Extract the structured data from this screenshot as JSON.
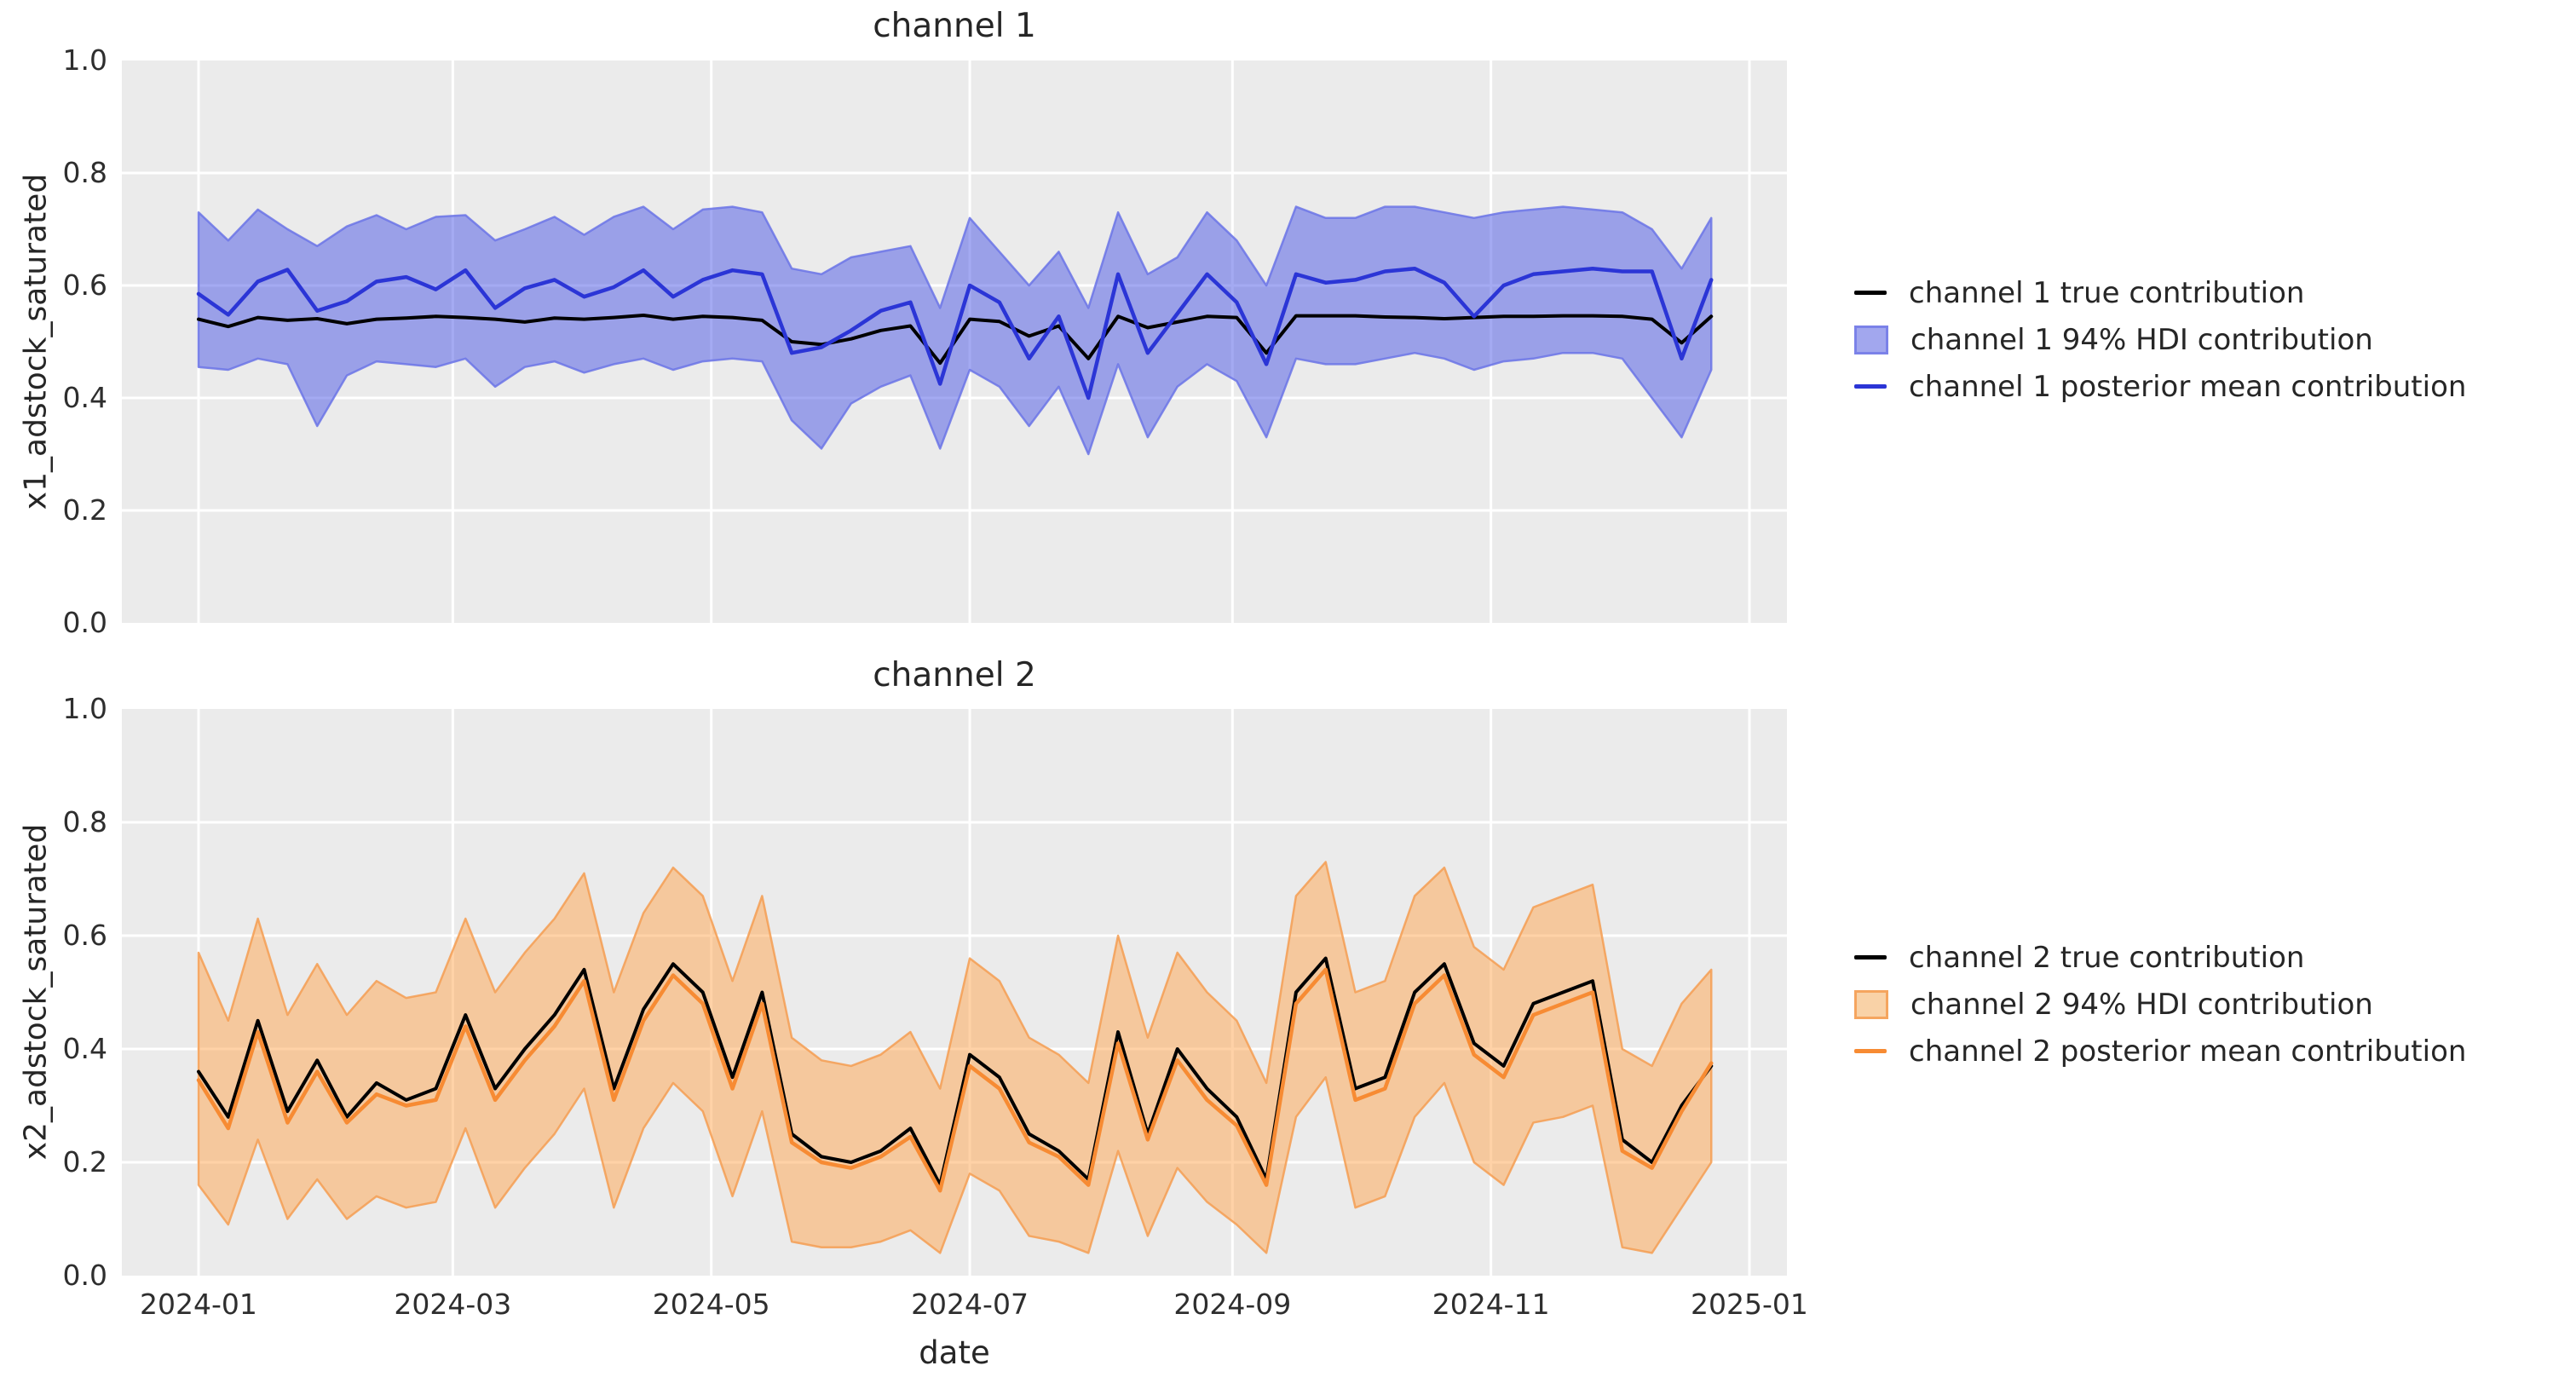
{
  "figure": {
    "background": "#ffffff",
    "axes_background": "#ebebeb",
    "grid_color": "#ffffff",
    "text_color": "#262626"
  },
  "x_axis": {
    "label": "date",
    "ticks": [
      {
        "label": "2024-01",
        "day": 0
      },
      {
        "label": "2024-03",
        "day": 60
      },
      {
        "label": "2024-05",
        "day": 121
      },
      {
        "label": "2024-07",
        "day": 182
      },
      {
        "label": "2024-09",
        "day": 244
      },
      {
        "label": "2024-11",
        "day": 305
      },
      {
        "label": "2025-01",
        "day": 366
      }
    ],
    "span_days": 366,
    "points_step_days": 7
  },
  "chart_data": [
    {
      "type": "line",
      "title": "channel 1",
      "ylabel": "x1_adstock_saturated",
      "ylim": [
        0.0,
        1.0
      ],
      "y_ticks": [
        "0.0",
        "0.2",
        "0.4",
        "0.6",
        "0.8",
        "1.0"
      ],
      "grid": true,
      "legend": [
        "channel 1 true contribution",
        "channel 1 94% HDI contribution",
        "channel 1 posterior mean contribution"
      ],
      "colors": {
        "true_line": "#000000",
        "mean_line": "#2b35d6",
        "band_fill": "#4955e5",
        "band_fill_opacity": 0.5,
        "band_edge": "#6b74e6",
        "legend_band_fill": "#a2a7ee",
        "legend_band_edge": "#7b82e8"
      },
      "series": {
        "true": [
          0.54,
          0.527,
          0.543,
          0.538,
          0.541,
          0.532,
          0.54,
          0.542,
          0.545,
          0.543,
          0.54,
          0.535,
          0.542,
          0.54,
          0.543,
          0.547,
          0.54,
          0.545,
          0.543,
          0.538,
          0.5,
          0.495,
          0.505,
          0.52,
          0.528,
          0.462,
          0.54,
          0.536,
          0.51,
          0.528,
          0.47,
          0.545,
          0.525,
          0.535,
          0.545,
          0.543,
          0.48,
          0.546,
          0.546,
          0.546,
          0.544,
          0.543,
          0.541,
          0.543,
          0.545,
          0.545,
          0.546,
          0.546,
          0.545,
          0.54,
          0.498,
          0.545
        ],
        "mean": [
          0.585,
          0.548,
          0.607,
          0.628,
          0.555,
          0.572,
          0.607,
          0.615,
          0.593,
          0.627,
          0.56,
          0.595,
          0.61,
          0.58,
          0.597,
          0.627,
          0.58,
          0.61,
          0.627,
          0.62,
          0.48,
          0.49,
          0.52,
          0.555,
          0.57,
          0.425,
          0.6,
          0.57,
          0.47,
          0.545,
          0.4,
          0.62,
          0.48,
          0.55,
          0.62,
          0.57,
          0.46,
          0.62,
          0.605,
          0.61,
          0.625,
          0.63,
          0.605,
          0.545,
          0.6,
          0.62,
          0.625,
          0.63,
          0.625,
          0.625,
          0.47,
          0.61
        ],
        "hdi_low": [
          0.455,
          0.45,
          0.47,
          0.46,
          0.35,
          0.44,
          0.465,
          0.46,
          0.455,
          0.47,
          0.42,
          0.455,
          0.465,
          0.445,
          0.46,
          0.47,
          0.45,
          0.465,
          0.47,
          0.465,
          0.36,
          0.31,
          0.39,
          0.42,
          0.44,
          0.31,
          0.45,
          0.42,
          0.35,
          0.42,
          0.3,
          0.46,
          0.33,
          0.42,
          0.46,
          0.43,
          0.33,
          0.47,
          0.46,
          0.46,
          0.47,
          0.48,
          0.47,
          0.45,
          0.465,
          0.47,
          0.48,
          0.48,
          0.47,
          0.4,
          0.33,
          0.45
        ],
        "hdi_high": [
          0.73,
          0.68,
          0.735,
          0.7,
          0.67,
          0.705,
          0.725,
          0.7,
          0.722,
          0.725,
          0.68,
          0.7,
          0.722,
          0.69,
          0.722,
          0.74,
          0.7,
          0.735,
          0.74,
          0.73,
          0.63,
          0.62,
          0.65,
          0.66,
          0.67,
          0.56,
          0.72,
          0.66,
          0.6,
          0.66,
          0.56,
          0.73,
          0.62,
          0.65,
          0.73,
          0.68,
          0.6,
          0.74,
          0.72,
          0.72,
          0.74,
          0.74,
          0.73,
          0.72,
          0.73,
          0.735,
          0.74,
          0.735,
          0.73,
          0.7,
          0.63,
          0.72
        ]
      }
    },
    {
      "type": "line",
      "title": "channel 2",
      "ylabel": "x2_adstock_saturated",
      "ylim": [
        0.0,
        1.0
      ],
      "y_ticks": [
        "0.0",
        "0.2",
        "0.4",
        "0.6",
        "0.8",
        "1.0"
      ],
      "grid": true,
      "legend": [
        "channel 2 true contribution",
        "channel 2 94% HDI contribution",
        "channel 2 posterior mean contribution"
      ],
      "colors": {
        "true_line": "#000000",
        "mean_line": "#f78b33",
        "band_fill": "#ffa54f",
        "band_fill_opacity": 0.5,
        "band_edge": "#f59d52",
        "legend_band_fill": "#f9d2a7",
        "legend_band_edge": "#f5a55f"
      },
      "series": {
        "true": [
          0.36,
          0.28,
          0.45,
          0.29,
          0.38,
          0.28,
          0.34,
          0.31,
          0.33,
          0.46,
          0.33,
          0.4,
          0.46,
          0.54,
          0.33,
          0.47,
          0.55,
          0.5,
          0.35,
          0.5,
          0.25,
          0.21,
          0.2,
          0.22,
          0.26,
          0.16,
          0.39,
          0.35,
          0.25,
          0.22,
          0.17,
          0.43,
          0.25,
          0.4,
          0.33,
          0.28,
          0.17,
          0.5,
          0.56,
          0.33,
          0.35,
          0.5,
          0.55,
          0.41,
          0.37,
          0.48,
          0.5,
          0.52,
          0.24,
          0.2,
          0.3,
          0.37
        ],
        "mean": [
          0.345,
          0.26,
          0.43,
          0.27,
          0.36,
          0.27,
          0.32,
          0.3,
          0.31,
          0.44,
          0.31,
          0.38,
          0.44,
          0.52,
          0.31,
          0.45,
          0.53,
          0.48,
          0.33,
          0.48,
          0.235,
          0.2,
          0.19,
          0.21,
          0.245,
          0.15,
          0.37,
          0.33,
          0.235,
          0.21,
          0.16,
          0.41,
          0.24,
          0.38,
          0.31,
          0.265,
          0.16,
          0.48,
          0.54,
          0.31,
          0.33,
          0.48,
          0.53,
          0.39,
          0.35,
          0.46,
          0.48,
          0.5,
          0.22,
          0.19,
          0.29,
          0.375
        ],
        "hdi_low": [
          0.16,
          0.09,
          0.24,
          0.1,
          0.17,
          0.1,
          0.14,
          0.12,
          0.13,
          0.26,
          0.12,
          0.19,
          0.25,
          0.33,
          0.12,
          0.26,
          0.34,
          0.29,
          0.14,
          0.29,
          0.06,
          0.05,
          0.05,
          0.06,
          0.08,
          0.04,
          0.18,
          0.15,
          0.07,
          0.06,
          0.04,
          0.22,
          0.07,
          0.19,
          0.13,
          0.09,
          0.04,
          0.28,
          0.35,
          0.12,
          0.14,
          0.28,
          0.34,
          0.2,
          0.16,
          0.27,
          0.28,
          0.3,
          0.05,
          0.04,
          0.12,
          0.2
        ],
        "hdi_high": [
          0.57,
          0.45,
          0.63,
          0.46,
          0.55,
          0.46,
          0.52,
          0.49,
          0.5,
          0.63,
          0.5,
          0.57,
          0.63,
          0.71,
          0.5,
          0.64,
          0.72,
          0.67,
          0.52,
          0.67,
          0.42,
          0.38,
          0.37,
          0.39,
          0.43,
          0.33,
          0.56,
          0.52,
          0.42,
          0.39,
          0.34,
          0.6,
          0.42,
          0.57,
          0.5,
          0.45,
          0.34,
          0.67,
          0.73,
          0.5,
          0.52,
          0.67,
          0.72,
          0.58,
          0.54,
          0.65,
          0.67,
          0.69,
          0.4,
          0.37,
          0.48,
          0.54
        ]
      }
    }
  ]
}
